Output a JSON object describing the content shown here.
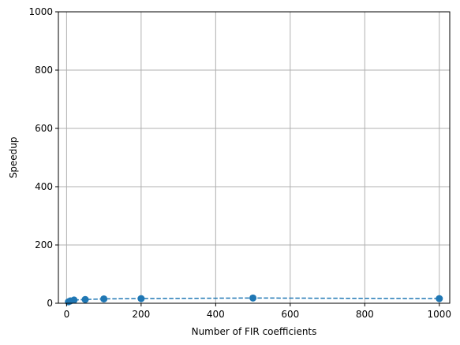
{
  "chart_data": {
    "type": "line",
    "title": "",
    "xlabel": "Number of FIR coefficients",
    "ylabel": "Speedup",
    "xlim": [
      -22,
      1028
    ],
    "ylim": [
      0,
      1000
    ],
    "xticks": [
      0,
      200,
      400,
      600,
      800,
      1000
    ],
    "yticks": [
      0,
      200,
      400,
      600,
      800,
      1000
    ],
    "grid": true,
    "legend": "none",
    "series": [
      {
        "color": "#1f77b4",
        "line_style": "dashed",
        "marker": "circle",
        "points": [
          {
            "x": 5,
            "y": 5
          },
          {
            "x": 10,
            "y": 8
          },
          {
            "x": 20,
            "y": 11
          },
          {
            "x": 50,
            "y": 13
          },
          {
            "x": 100,
            "y": 15
          },
          {
            "x": 200,
            "y": 16
          },
          {
            "x": 500,
            "y": 18
          },
          {
            "x": 1000,
            "y": 16
          }
        ]
      }
    ]
  }
}
